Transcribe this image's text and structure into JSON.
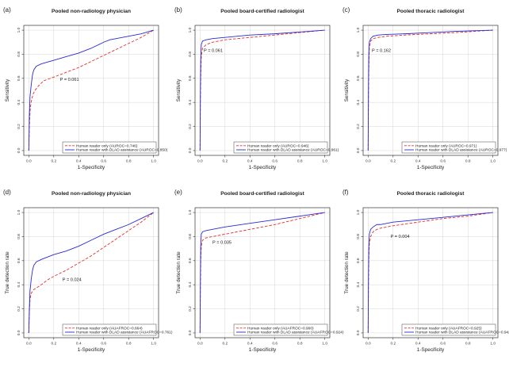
{
  "chart_data": [
    {
      "type": "line",
      "label": "(a)",
      "title": "Pooled non-radiology physician",
      "xlabel": "1-Specificity",
      "ylabel": "Sensitivity",
      "xlim": [
        0,
        1
      ],
      "ylim": [
        0,
        1
      ],
      "xticks": [
        "0.0",
        "0.2",
        "0.4",
        "0.6",
        "0.8",
        "1.0"
      ],
      "yticks": [
        "0.0",
        "0.2",
        "0.4",
        "0.6",
        "0.8",
        "1.0"
      ],
      "annotation": "P = 0.061",
      "annotation_pos": [
        0.25,
        0.58
      ],
      "legend_position": "bottom-right",
      "series": [
        {
          "name": "Human reader only (AUROC=0.746)",
          "color": "#e0302a",
          "dash": "dashed",
          "x": [
            0,
            0.005,
            0.01,
            0.02,
            0.035,
            0.05,
            0.08,
            0.12,
            0.2,
            0.3,
            0.4,
            0.5,
            0.6,
            0.7,
            0.8,
            0.9,
            1.0
          ],
          "y": [
            0,
            0.2,
            0.33,
            0.41,
            0.47,
            0.5,
            0.54,
            0.58,
            0.61,
            0.65,
            0.69,
            0.74,
            0.79,
            0.84,
            0.89,
            0.94,
            1.0
          ]
        },
        {
          "name": "Human reader with DLAD assistance (AUROC=0.850)",
          "color": "#2a2ad0",
          "dash": "solid",
          "x": [
            0,
            0.005,
            0.01,
            0.02,
            0.03,
            0.04,
            0.06,
            0.1,
            0.2,
            0.3,
            0.4,
            0.5,
            0.6,
            0.65,
            0.7,
            0.8,
            0.9,
            1.0
          ],
          "y": [
            0,
            0.3,
            0.45,
            0.55,
            0.63,
            0.67,
            0.7,
            0.72,
            0.75,
            0.78,
            0.81,
            0.85,
            0.9,
            0.92,
            0.93,
            0.95,
            0.97,
            1.0
          ]
        }
      ]
    },
    {
      "type": "line",
      "label": "(b)",
      "title": "Pooled board-certified radiologist",
      "xlabel": "1-Specificity",
      "ylabel": "Sensitivity",
      "xlim": [
        0,
        1
      ],
      "ylim": [
        0,
        1
      ],
      "xticks": [
        "0.0",
        "0.2",
        "0.4",
        "0.6",
        "0.8",
        "1.0"
      ],
      "yticks": [
        "0.0",
        "0.2",
        "0.4",
        "0.6",
        "0.8",
        "1.0"
      ],
      "annotation": "P = 0.061",
      "annotation_pos": [
        0.03,
        0.82
      ],
      "legend_position": "bottom-right",
      "series": [
        {
          "name": "Human reader only (AUROC=0.946)",
          "color": "#e0302a",
          "dash": "dashed",
          "x": [
            0,
            0.003,
            0.006,
            0.01,
            0.02,
            0.05,
            0.1,
            0.2,
            0.4,
            0.6,
            0.8,
            1.0
          ],
          "y": [
            0,
            0.4,
            0.62,
            0.78,
            0.85,
            0.88,
            0.9,
            0.92,
            0.94,
            0.96,
            0.98,
            1.0
          ]
        },
        {
          "name": "Human reader with DLAD assistance (AUROC=0.961)",
          "color": "#2a2ad0",
          "dash": "solid",
          "x": [
            0,
            0.003,
            0.006,
            0.01,
            0.02,
            0.05,
            0.1,
            0.2,
            0.4,
            0.6,
            0.8,
            1.0
          ],
          "y": [
            0,
            0.5,
            0.75,
            0.88,
            0.91,
            0.92,
            0.93,
            0.94,
            0.96,
            0.97,
            0.985,
            1.0
          ]
        }
      ]
    },
    {
      "type": "line",
      "label": "(c)",
      "title": "Pooled thoracic radiologist",
      "xlabel": "1-Specificity",
      "ylabel": "Sensitivity",
      "xlim": [
        0,
        1
      ],
      "ylim": [
        0,
        1
      ],
      "xticks": [
        "0.0",
        "0.2",
        "0.4",
        "0.6",
        "0.8",
        "1.0"
      ],
      "yticks": [
        "0.0",
        "0.2",
        "0.4",
        "0.6",
        "0.8",
        "1.0"
      ],
      "annotation": "P = 0.162",
      "annotation_pos": [
        0.03,
        0.82
      ],
      "legend_position": "bottom-right",
      "series": [
        {
          "name": "Human reader only (AUROC=0.971)",
          "color": "#e0302a",
          "dash": "dashed",
          "x": [
            0,
            0.003,
            0.006,
            0.01,
            0.02,
            0.04,
            0.08,
            0.15,
            0.3,
            0.5,
            0.7,
            1.0
          ],
          "y": [
            0,
            0.45,
            0.7,
            0.85,
            0.91,
            0.93,
            0.94,
            0.95,
            0.96,
            0.97,
            0.98,
            1.0
          ]
        },
        {
          "name": "Human reader with DLAD assistance (AUROC=0.977)",
          "color": "#2a2ad0",
          "dash": "solid",
          "x": [
            0,
            0.003,
            0.006,
            0.01,
            0.02,
            0.04,
            0.08,
            0.15,
            0.3,
            0.5,
            0.7,
            1.0
          ],
          "y": [
            0,
            0.55,
            0.8,
            0.9,
            0.93,
            0.95,
            0.96,
            0.965,
            0.97,
            0.98,
            0.99,
            1.0
          ]
        }
      ]
    },
    {
      "type": "line",
      "label": "(d)",
      "title": "Pooled non-radiology physician",
      "xlabel": "1-Specificity",
      "ylabel": "True detection rate",
      "xlim": [
        0,
        1
      ],
      "ylim": [
        0,
        1
      ],
      "xticks": [
        "0.0",
        "0.2",
        "0.4",
        "0.6",
        "0.8",
        "1.0"
      ],
      "yticks": [
        "0.0",
        "0.2",
        "0.4",
        "0.6",
        "0.8",
        "1.0"
      ],
      "annotation": "P = 0.024",
      "annotation_pos": [
        0.27,
        0.43
      ],
      "legend_position": "bottom-right",
      "series": [
        {
          "name": "Human reader only (AUAFROC=0.664)",
          "color": "#e0302a",
          "dash": "dashed",
          "x": [
            0,
            0.005,
            0.01,
            0.02,
            0.04,
            0.07,
            0.1,
            0.15,
            0.2,
            0.3,
            0.4,
            0.5,
            0.6,
            0.7,
            0.8,
            0.9,
            1.0
          ],
          "y": [
            0,
            0.18,
            0.28,
            0.33,
            0.36,
            0.38,
            0.4,
            0.44,
            0.47,
            0.52,
            0.58,
            0.64,
            0.71,
            0.78,
            0.85,
            0.92,
            1.0
          ]
        },
        {
          "name": "Human reader with DLAD assistance (AUAFROC=0.761)",
          "color": "#2a2ad0",
          "dash": "solid",
          "x": [
            0,
            0.005,
            0.01,
            0.02,
            0.03,
            0.04,
            0.06,
            0.1,
            0.2,
            0.3,
            0.4,
            0.5,
            0.6,
            0.7,
            0.8,
            0.9,
            1.0
          ],
          "y": [
            0,
            0.2,
            0.35,
            0.45,
            0.52,
            0.56,
            0.59,
            0.61,
            0.65,
            0.68,
            0.72,
            0.77,
            0.82,
            0.86,
            0.9,
            0.95,
            1.0
          ]
        }
      ]
    },
    {
      "type": "line",
      "label": "(e)",
      "title": "Pooled board-certified radiologist",
      "xlabel": "1-Specificity",
      "ylabel": "True detection rate",
      "xlim": [
        0,
        1
      ],
      "ylim": [
        0,
        1
      ],
      "xticks": [
        "0.0",
        "0.2",
        "0.4",
        "0.6",
        "0.8",
        "1.0"
      ],
      "yticks": [
        "0.0",
        "0.2",
        "0.4",
        "0.6",
        "0.8",
        "1.0"
      ],
      "annotation": "P = 0.035",
      "annotation_pos": [
        0.1,
        0.74
      ],
      "legend_position": "bottom-right",
      "series": [
        {
          "name": "Human reader only (AUAFROC=0.900)",
          "color": "#e0302a",
          "dash": "dashed",
          "x": [
            0,
            0.003,
            0.006,
            0.01,
            0.02,
            0.05,
            0.1,
            0.2,
            0.4,
            0.6,
            0.8,
            1.0
          ],
          "y": [
            0,
            0.35,
            0.6,
            0.72,
            0.77,
            0.79,
            0.8,
            0.82,
            0.86,
            0.9,
            0.95,
            1.0
          ]
        },
        {
          "name": "Human reader with DLAD assistance (AUAFROC=0.924)",
          "color": "#2a2ad0",
          "dash": "solid",
          "x": [
            0,
            0.003,
            0.006,
            0.01,
            0.02,
            0.05,
            0.1,
            0.2,
            0.4,
            0.6,
            0.8,
            1.0
          ],
          "y": [
            0,
            0.45,
            0.72,
            0.82,
            0.84,
            0.85,
            0.86,
            0.88,
            0.91,
            0.94,
            0.97,
            1.0
          ]
        }
      ]
    },
    {
      "type": "line",
      "label": "(f)",
      "title": "Pooled thoracic radiologist",
      "xlabel": "1-Specificity",
      "ylabel": "True detection rate",
      "xlim": [
        0,
        1
      ],
      "ylim": [
        0,
        1
      ],
      "xticks": [
        "0.0",
        "0.2",
        "0.4",
        "0.6",
        "0.8",
        "1.0"
      ],
      "yticks": [
        "0.0",
        "0.2",
        "0.4",
        "0.6",
        "0.8",
        "1.0"
      ],
      "annotation": "P = 0.004",
      "annotation_pos": [
        0.18,
        0.79
      ],
      "legend_position": "bottom-right",
      "series": [
        {
          "name": "Human reader only (AUAFROC=0.925)",
          "color": "#e0302a",
          "dash": "dashed",
          "x": [
            0,
            0.003,
            0.006,
            0.01,
            0.02,
            0.04,
            0.07,
            0.1,
            0.2,
            0.4,
            0.6,
            0.8,
            1.0
          ],
          "y": [
            0,
            0.4,
            0.62,
            0.74,
            0.8,
            0.84,
            0.86,
            0.87,
            0.89,
            0.92,
            0.95,
            0.97,
            1.0
          ]
        },
        {
          "name": "Human reader with DLAD assistance (AUAFROC=0.942)",
          "color": "#2a2ad0",
          "dash": "solid",
          "x": [
            0,
            0.003,
            0.006,
            0.01,
            0.02,
            0.04,
            0.07,
            0.1,
            0.2,
            0.4,
            0.6,
            0.8,
            1.0
          ],
          "y": [
            0,
            0.5,
            0.72,
            0.82,
            0.86,
            0.88,
            0.9,
            0.9,
            0.92,
            0.94,
            0.96,
            0.98,
            1.0
          ]
        }
      ]
    }
  ]
}
